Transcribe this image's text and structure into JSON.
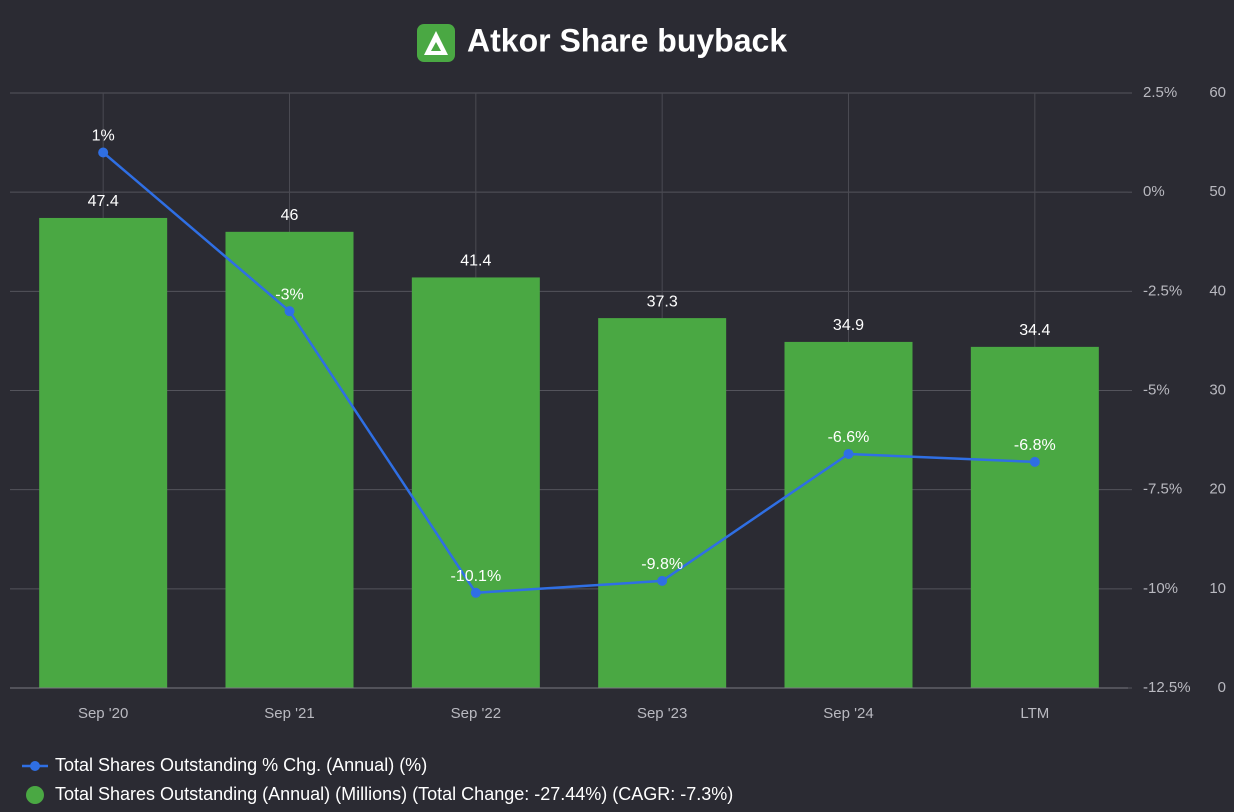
{
  "chart_data": {
    "type": "combo",
    "title": "Atkor Share buyback",
    "categories": [
      "Sep '20",
      "Sep '21",
      "Sep '22",
      "Sep '23",
      "Sep '24",
      "LTM"
    ],
    "series": [
      {
        "name": "Total Shares Outstanding % Chg. (Annual) (%)",
        "type": "line",
        "axis": "y2",
        "color": "#2f6fe4",
        "values": [
          1,
          -3,
          -10.1,
          -9.8,
          -6.6,
          -6.8
        ],
        "value_labels": [
          "1%",
          "-3%",
          "-10.1%",
          "-9.8%",
          "-6.6%",
          "-6.8%"
        ]
      },
      {
        "name": "Total Shares Outstanding (Annual) (Millions) (Total Change: -27.44%) (CAGR: -7.3%)",
        "type": "bar",
        "color": "#4aa843",
        "values": [
          47.4,
          46,
          41.4,
          37.3,
          34.9,
          34.4
        ]
      }
    ],
    "ylim": [
      0,
      60
    ],
    "yticks": [
      0,
      10,
      20,
      30,
      40,
      50,
      60
    ],
    "y2lim": [
      -12.5,
      2.5
    ],
    "y2ticks": [
      {
        "value": -12.5,
        "label": "-12.5%"
      },
      {
        "value": -10,
        "label": "-10%"
      },
      {
        "value": -7.5,
        "label": "-7.5%"
      },
      {
        "value": -5,
        "label": "-5%"
      },
      {
        "value": -2.5,
        "label": "-2.5%"
      },
      {
        "value": 0,
        "label": "0%"
      },
      {
        "value": 2.5,
        "label": "2.5%"
      }
    ],
    "grid": true
  }
}
